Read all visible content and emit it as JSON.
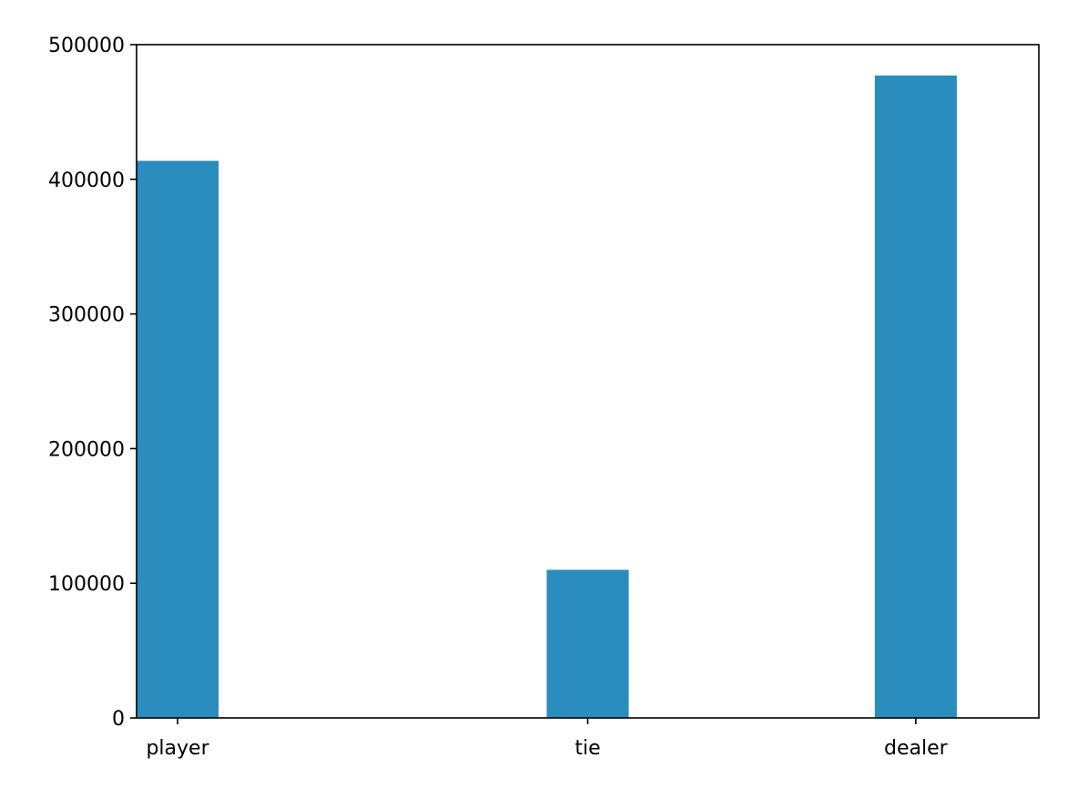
{
  "chart_data": {
    "type": "bar",
    "categories": [
      "player",
      "tie",
      "dealer"
    ],
    "values": [
      413700,
      110000,
      477100
    ],
    "x_positions": [
      0,
      1,
      1.8
    ],
    "xlim": [
      -0.1,
      2.1
    ],
    "ylim": [
      0,
      500000
    ],
    "yticks": [
      0,
      100000,
      200000,
      300000,
      400000,
      500000
    ],
    "ytick_labels": [
      "0",
      "100000",
      "200000",
      "300000",
      "400000",
      "500000"
    ],
    "xtick_labels": [
      "player",
      "tie",
      "dealer"
    ],
    "title": "",
    "xlabel": "",
    "ylabel": "",
    "grid": false,
    "legend": false,
    "bar_color": "#2b8cbe"
  }
}
